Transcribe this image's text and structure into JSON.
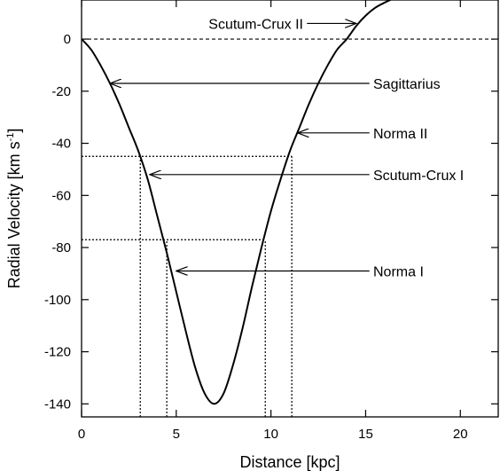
{
  "chart_data": {
    "type": "line",
    "xlabel": "Distance [kpc]",
    "ylabel_main": "Radial Velocity [km s",
    "ylabel_sup": "-1",
    "ylabel_close": "]",
    "xlim": [
      0,
      22
    ],
    "ylim": [
      -145,
      15
    ],
    "x_ticks": [
      0,
      5,
      10,
      15,
      20
    ],
    "y_ticks": [
      0,
      -20,
      -40,
      -60,
      -80,
      -100,
      -120,
      -140
    ],
    "grid": false,
    "series": [
      {
        "x": [
          0,
          0.5,
          1,
          1.5,
          2,
          2.5,
          3,
          3.5,
          4,
          4.5,
          5,
          5.5,
          6,
          6.5,
          7,
          7.5,
          8,
          8.5,
          9,
          9.5,
          10,
          10.5,
          11,
          11.5,
          12,
          12.5,
          13,
          13.5,
          14,
          14.5,
          15,
          15.5,
          16,
          16.3
        ],
        "y": [
          0,
          -4,
          -10,
          -17,
          -25,
          -34,
          -43,
          -54,
          -68,
          -82,
          -97,
          -112,
          -126,
          -136,
          -140,
          -136,
          -125,
          -111,
          -95,
          -80,
          -66,
          -54,
          -43,
          -34,
          -25,
          -17,
          -10,
          -4,
          0,
          5,
          9,
          12,
          14,
          15
        ]
      }
    ],
    "reference_lines": [
      {
        "type": "horizontal",
        "y": 0,
        "x_range": [
          0,
          22
        ],
        "style": "dashed"
      },
      {
        "type": "horizontal",
        "y": -45,
        "x_range": [
          0,
          11.1
        ],
        "style": "dotted"
      },
      {
        "type": "horizontal",
        "y": -77,
        "x_range": [
          0,
          9.7
        ],
        "style": "dotted"
      },
      {
        "type": "vertical",
        "x": 3.1,
        "y_range": [
          -145,
          -45
        ],
        "style": "dotted"
      },
      {
        "type": "vertical",
        "x": 11.1,
        "y_range": [
          -145,
          -45
        ],
        "style": "dotted"
      },
      {
        "type": "vertical",
        "x": 4.5,
        "y_range": [
          -145,
          -77
        ],
        "style": "dotted"
      },
      {
        "type": "vertical",
        "x": 9.7,
        "y_range": [
          -145,
          -77
        ],
        "style": "dotted"
      }
    ],
    "annotations": [
      {
        "text": "Scutum-Crux II",
        "text_x": 11.7,
        "text_y": 6,
        "text_anchor": "end",
        "arrow_from": [
          11.9,
          6
        ],
        "arrow_to": [
          14.5,
          6
        ]
      },
      {
        "text": "Sagittarius",
        "text_x": 15.4,
        "text_y": -17,
        "text_anchor": "start",
        "arrow_from": [
          15.2,
          -17
        ],
        "arrow_to": [
          1.5,
          -17
        ]
      },
      {
        "text": "Norma II",
        "text_x": 15.4,
        "text_y": -36,
        "text_anchor": "start",
        "arrow_from": [
          15.2,
          -36
        ],
        "arrow_to": [
          11.4,
          -36
        ]
      },
      {
        "text": "Scutum-Crux I",
        "text_x": 15.4,
        "text_y": -52,
        "text_anchor": "start",
        "arrow_from": [
          15.2,
          -52
        ],
        "arrow_to": [
          3.6,
          -52
        ]
      },
      {
        "text": "Norma I",
        "text_x": 15.4,
        "text_y": -89,
        "text_anchor": "start",
        "arrow_from": [
          15.2,
          -89
        ],
        "arrow_to": [
          5.0,
          -89
        ]
      }
    ]
  }
}
